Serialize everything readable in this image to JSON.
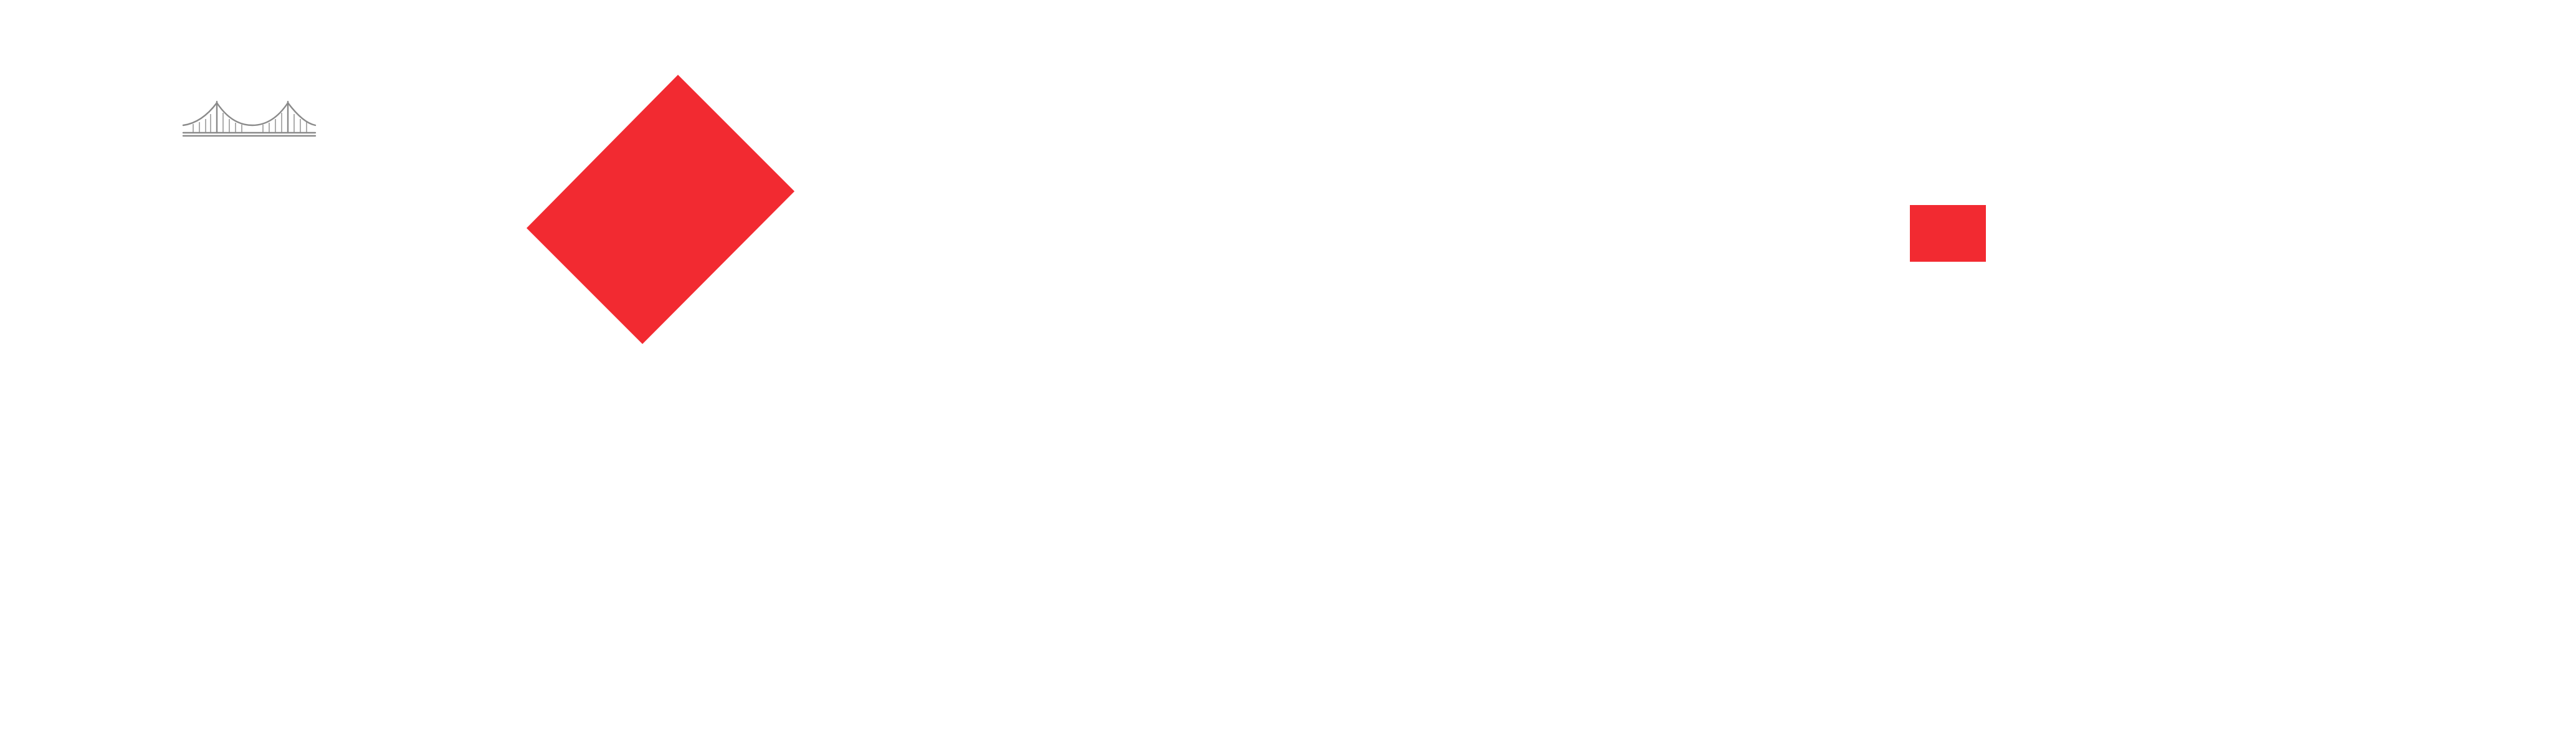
{
  "colors": {
    "background": "#ffffff",
    "accent_red": "#f22a31",
    "logo_gray": "#8a8a8a"
  },
  "icons": {
    "logo": "suspension-bridge-icon",
    "primary_shape": "red-diamond-shape",
    "secondary_shape": "red-square-shape"
  }
}
